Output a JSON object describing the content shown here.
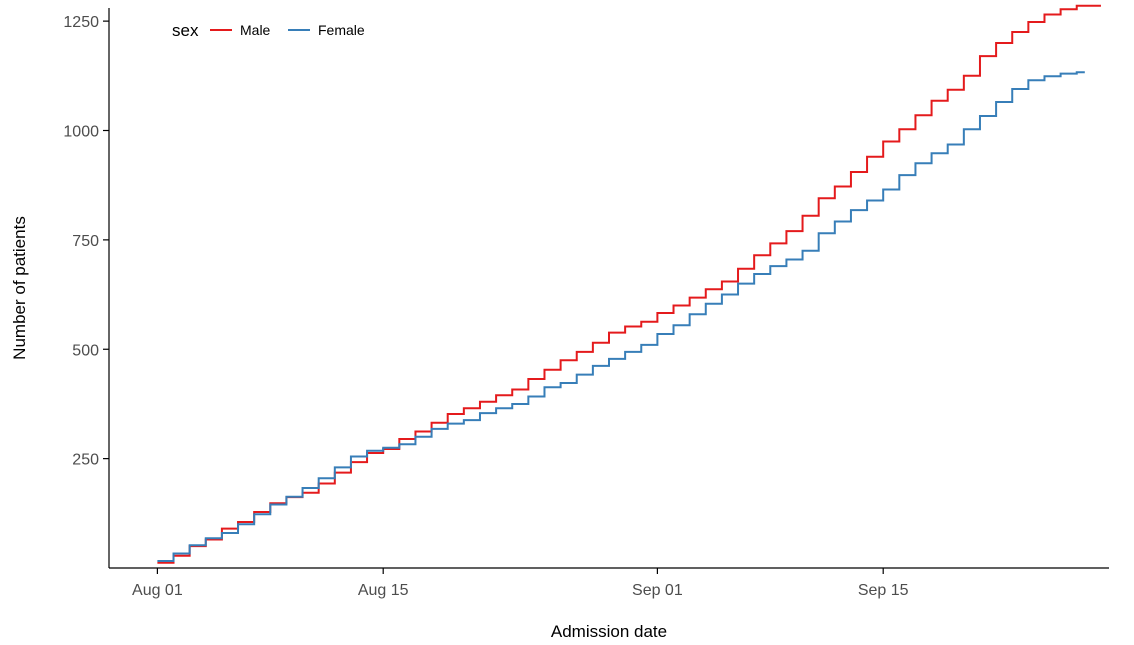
{
  "chart_data": {
    "type": "line",
    "step": true,
    "xlabel": "Admission date",
    "ylabel": "Number of patients",
    "x_start": "2023-08-01",
    "x_ticks": [
      {
        "date": "2023-08-01",
        "label": "Aug 01"
      },
      {
        "date": "2023-08-15",
        "label": "Aug 15"
      },
      {
        "date": "2023-09-01",
        "label": "Sep 01"
      },
      {
        "date": "2023-09-15",
        "label": "Sep 15"
      }
    ],
    "xlim": [
      "2023-07-29",
      "2023-09-29"
    ],
    "y_ticks": [
      250,
      500,
      750,
      1000,
      1250
    ],
    "ylim": [
      0,
      1280
    ],
    "grid": false,
    "legend": {
      "title": "sex",
      "position": "top-left",
      "items": [
        {
          "label": "Male",
          "color": "#e41a1c"
        },
        {
          "label": "Female",
          "color": "#377eb8"
        }
      ]
    },
    "series": [
      {
        "name": "Male",
        "color": "#e41a1c",
        "x": [
          "2023-08-01",
          "2023-08-02",
          "2023-08-03",
          "2023-08-04",
          "2023-08-05",
          "2023-08-06",
          "2023-08-07",
          "2023-08-08",
          "2023-08-09",
          "2023-08-10",
          "2023-08-11",
          "2023-08-12",
          "2023-08-13",
          "2023-08-14",
          "2023-08-15",
          "2023-08-16",
          "2023-08-17",
          "2023-08-18",
          "2023-08-19",
          "2023-08-20",
          "2023-08-21",
          "2023-08-22",
          "2023-08-23",
          "2023-08-24",
          "2023-08-25",
          "2023-08-26",
          "2023-08-27",
          "2023-08-28",
          "2023-08-29",
          "2023-08-30",
          "2023-08-31",
          "2023-09-01",
          "2023-09-02",
          "2023-09-03",
          "2023-09-04",
          "2023-09-05",
          "2023-09-06",
          "2023-09-07",
          "2023-09-08",
          "2023-09-09",
          "2023-09-10",
          "2023-09-11",
          "2023-09-12",
          "2023-09-13",
          "2023-09-14",
          "2023-09-15",
          "2023-09-16",
          "2023-09-17",
          "2023-09-18",
          "2023-09-19",
          "2023-09-20",
          "2023-09-21",
          "2023-09-22",
          "2023-09-23",
          "2023-09-24",
          "2023-09-25",
          "2023-09-26",
          "2023-09-27",
          "2023-09-28"
        ],
        "values": [
          12,
          28,
          50,
          65,
          90,
          105,
          128,
          148,
          162,
          172,
          193,
          218,
          242,
          263,
          272,
          295,
          312,
          332,
          352,
          365,
          380,
          395,
          408,
          432,
          453,
          475,
          494,
          515,
          538,
          552,
          563,
          583,
          600,
          618,
          637,
          655,
          684,
          715,
          742,
          770,
          805,
          845,
          872,
          905,
          940,
          975,
          1003,
          1035,
          1068,
          1093,
          1125,
          1170,
          1200,
          1225,
          1248,
          1265,
          1277,
          1285,
          1285
        ]
      },
      {
        "name": "Female",
        "color": "#377eb8",
        "x": [
          "2023-08-01",
          "2023-08-02",
          "2023-08-03",
          "2023-08-04",
          "2023-08-05",
          "2023-08-06",
          "2023-08-07",
          "2023-08-08",
          "2023-08-09",
          "2023-08-10",
          "2023-08-11",
          "2023-08-12",
          "2023-08-13",
          "2023-08-14",
          "2023-08-15",
          "2023-08-16",
          "2023-08-17",
          "2023-08-18",
          "2023-08-19",
          "2023-08-20",
          "2023-08-21",
          "2023-08-22",
          "2023-08-23",
          "2023-08-24",
          "2023-08-25",
          "2023-08-26",
          "2023-08-27",
          "2023-08-28",
          "2023-08-29",
          "2023-08-30",
          "2023-08-31",
          "2023-09-01",
          "2023-09-02",
          "2023-09-03",
          "2023-09-04",
          "2023-09-05",
          "2023-09-06",
          "2023-09-07",
          "2023-09-08",
          "2023-09-09",
          "2023-09-10",
          "2023-09-11",
          "2023-09-12",
          "2023-09-13",
          "2023-09-14",
          "2023-09-15",
          "2023-09-16",
          "2023-09-17",
          "2023-09-18",
          "2023-09-19",
          "2023-09-20",
          "2023-09-21",
          "2023-09-22",
          "2023-09-23",
          "2023-09-24",
          "2023-09-25",
          "2023-09-26",
          "2023-09-27"
        ],
        "values": [
          16,
          33,
          52,
          68,
          80,
          100,
          123,
          145,
          163,
          183,
          205,
          230,
          255,
          268,
          275,
          283,
          300,
          318,
          330,
          338,
          354,
          365,
          375,
          392,
          413,
          423,
          442,
          462,
          478,
          494,
          510,
          535,
          555,
          580,
          604,
          625,
          650,
          672,
          690,
          705,
          725,
          765,
          792,
          818,
          840,
          865,
          898,
          925,
          948,
          968,
          1003,
          1033,
          1065,
          1095,
          1115,
          1124,
          1130,
          1133
        ]
      }
    ]
  }
}
